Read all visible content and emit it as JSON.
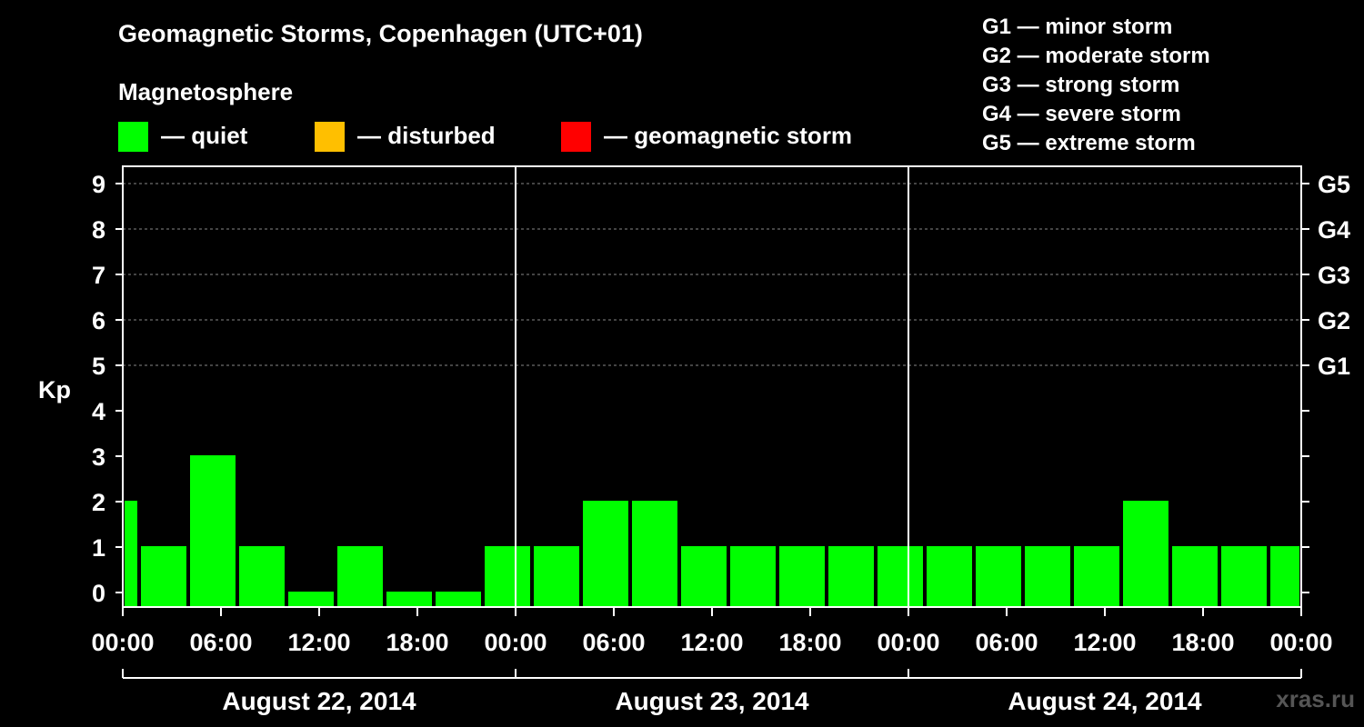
{
  "title": "Geomagnetic Storms, Copenhagen (UTC+01)",
  "magnetosphere_label": "Magnetosphere",
  "legend": [
    {
      "label": "— quiet",
      "color": "#00ff00"
    },
    {
      "label": "— disturbed",
      "color": "#ffbf00"
    },
    {
      "label": "— geomagnetic storm",
      "color": "#ff0000"
    }
  ],
  "storm_scale": [
    "G1 — minor storm",
    "G2 — moderate storm",
    "G3 — strong storm",
    "G4 — severe storm",
    "G5 — extreme storm"
  ],
  "watermark": "xras.ru",
  "colors": {
    "background": "#000000",
    "axis": "#ffffff",
    "grid": "#888888",
    "quiet": "#00ff00"
  },
  "chart_data": {
    "type": "bar",
    "title": "Geomagnetic Storms, Copenhagen (UTC+01)",
    "ylabel": "Kp",
    "ylim": [
      0,
      9
    ],
    "yticks": [
      "0",
      "1",
      "2",
      "3",
      "4",
      "5",
      "6",
      "7",
      "8",
      "9"
    ],
    "right_ticks": [
      {
        "kp": 5,
        "label": "G1"
      },
      {
        "kp": 6,
        "label": "G2"
      },
      {
        "kp": 7,
        "label": "G3"
      },
      {
        "kp": 8,
        "label": "G4"
      },
      {
        "kp": 9,
        "label": "G5"
      }
    ],
    "grid_kp": [
      5,
      6,
      7,
      8,
      9
    ],
    "x_hours": [
      0,
      72
    ],
    "x_ticks": [
      {
        "hour": 0,
        "label": "00:00"
      },
      {
        "hour": 6,
        "label": "06:00"
      },
      {
        "hour": 12,
        "label": "12:00"
      },
      {
        "hour": 18,
        "label": "18:00"
      },
      {
        "hour": 24,
        "label": "00:00"
      },
      {
        "hour": 30,
        "label": "06:00"
      },
      {
        "hour": 36,
        "label": "12:00"
      },
      {
        "hour": 42,
        "label": "18:00"
      },
      {
        "hour": 48,
        "label": "00:00"
      },
      {
        "hour": 54,
        "label": "06:00"
      },
      {
        "hour": 60,
        "label": "12:00"
      },
      {
        "hour": 66,
        "label": "18:00"
      },
      {
        "hour": 72,
        "label": "00:00"
      }
    ],
    "day_dividers": [
      24,
      48
    ],
    "days": [
      "August 22, 2014",
      "August 23, 2014",
      "August 24, 2014"
    ],
    "bars": [
      {
        "start": 0,
        "end": 1,
        "kp": 2
      },
      {
        "start": 1,
        "end": 4,
        "kp": 1
      },
      {
        "start": 4,
        "end": 7,
        "kp": 3
      },
      {
        "start": 7,
        "end": 10,
        "kp": 1
      },
      {
        "start": 10,
        "end": 13,
        "kp": 0
      },
      {
        "start": 13,
        "end": 16,
        "kp": 1
      },
      {
        "start": 16,
        "end": 19,
        "kp": 0
      },
      {
        "start": 19,
        "end": 22,
        "kp": 0
      },
      {
        "start": 22,
        "end": 25,
        "kp": 1
      },
      {
        "start": 25,
        "end": 28,
        "kp": 1
      },
      {
        "start": 28,
        "end": 31,
        "kp": 2
      },
      {
        "start": 31,
        "end": 34,
        "kp": 2
      },
      {
        "start": 34,
        "end": 37,
        "kp": 1
      },
      {
        "start": 37,
        "end": 40,
        "kp": 1
      },
      {
        "start": 40,
        "end": 43,
        "kp": 1
      },
      {
        "start": 43,
        "end": 46,
        "kp": 1
      },
      {
        "start": 46,
        "end": 49,
        "kp": 1
      },
      {
        "start": 49,
        "end": 52,
        "kp": 1
      },
      {
        "start": 52,
        "end": 55,
        "kp": 1
      },
      {
        "start": 55,
        "end": 58,
        "kp": 1
      },
      {
        "start": 58,
        "end": 61,
        "kp": 1
      },
      {
        "start": 61,
        "end": 64,
        "kp": 2
      },
      {
        "start": 64,
        "end": 67,
        "kp": 1
      },
      {
        "start": 67,
        "end": 70,
        "kp": 1
      },
      {
        "start": 70,
        "end": 72,
        "kp": 1
      }
    ]
  }
}
